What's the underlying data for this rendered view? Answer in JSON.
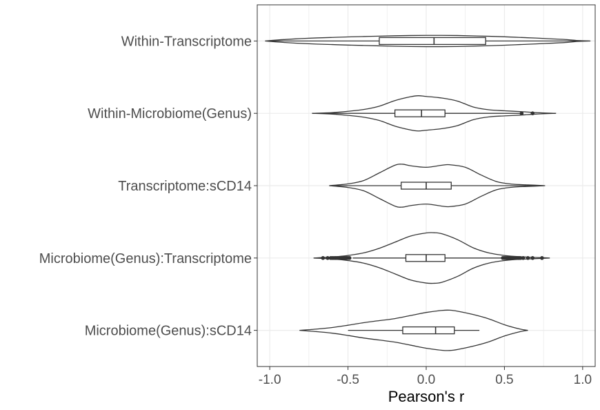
{
  "chart_data": {
    "type": "violin",
    "orientation": "horizontal",
    "title": "",
    "xlabel": "Pearson's r",
    "ylabel": "",
    "xlim": [
      -1.08,
      1.08
    ],
    "xticks": [
      -1.0,
      -0.5,
      0.0,
      0.5,
      1.0
    ],
    "xtick_labels": [
      "-1.0",
      "-0.5",
      "0.0",
      "0.5",
      "1.0"
    ],
    "grid": true,
    "legend": "none",
    "colors": {
      "stroke": "#333333",
      "grid": "#ebebeb",
      "fill": "#ffffff"
    },
    "series": [
      {
        "label": "Within-Transcriptome",
        "violin_min": -1.03,
        "violin_max": 1.05,
        "box": {
          "whisker_low": -1.01,
          "q1": -0.3,
          "median": 0.05,
          "q3": 0.38,
          "whisker_high": 1.04
        },
        "outliers": [],
        "density": [
          [
            -1.03,
            0
          ],
          [
            -0.95,
            0.04
          ],
          [
            -0.9,
            0.06
          ],
          [
            -0.8,
            0.095
          ],
          [
            -0.7,
            0.12
          ],
          [
            -0.6,
            0.14
          ],
          [
            -0.5,
            0.16
          ],
          [
            -0.4,
            0.175
          ],
          [
            -0.3,
            0.19
          ],
          [
            -0.2,
            0.205
          ],
          [
            -0.1,
            0.215
          ],
          [
            0.0,
            0.22
          ],
          [
            0.1,
            0.22
          ],
          [
            0.2,
            0.215
          ],
          [
            0.3,
            0.2
          ],
          [
            0.4,
            0.185
          ],
          [
            0.5,
            0.165
          ],
          [
            0.6,
            0.14
          ],
          [
            0.7,
            0.115
          ],
          [
            0.8,
            0.085
          ],
          [
            0.9,
            0.055
          ],
          [
            0.96,
            0.02
          ],
          [
            1.0,
            0.01
          ],
          [
            1.05,
            0
          ]
        ]
      },
      {
        "label": "Within-Microbiome(Genus)",
        "violin_min": -0.73,
        "violin_max": 0.83,
        "box": {
          "whisker_low": -0.72,
          "q1": -0.2,
          "median": -0.03,
          "q3": 0.12,
          "whisker_high": 0.6
        },
        "outliers": [
          0.61,
          0.68
        ],
        "density": [
          [
            -0.73,
            0
          ],
          [
            -0.6,
            0.03
          ],
          [
            -0.5,
            0.08
          ],
          [
            -0.4,
            0.15
          ],
          [
            -0.3,
            0.28
          ],
          [
            -0.2,
            0.5
          ],
          [
            -0.1,
            0.65
          ],
          [
            -0.05,
            0.69
          ],
          [
            0.0,
            0.66
          ],
          [
            0.1,
            0.6
          ],
          [
            0.2,
            0.48
          ],
          [
            0.3,
            0.25
          ],
          [
            0.4,
            0.14
          ],
          [
            0.5,
            0.1
          ],
          [
            0.6,
            0.07
          ],
          [
            0.7,
            0.03
          ],
          [
            0.83,
            0
          ]
        ]
      },
      {
        "label": "Transcriptome:sCD14",
        "violin_min": -0.62,
        "violin_max": 0.76,
        "box": {
          "whisker_low": -0.6,
          "q1": -0.16,
          "median": 0.0,
          "q3": 0.16,
          "whisker_high": 0.75
        },
        "outliers": [],
        "density": [
          [
            -0.62,
            0
          ],
          [
            -0.5,
            0.07
          ],
          [
            -0.4,
            0.2
          ],
          [
            -0.3,
            0.5
          ],
          [
            -0.2,
            0.8
          ],
          [
            -0.15,
            0.84
          ],
          [
            -0.1,
            0.78
          ],
          [
            0.0,
            0.72
          ],
          [
            0.1,
            0.8
          ],
          [
            0.15,
            0.82
          ],
          [
            0.25,
            0.72
          ],
          [
            0.35,
            0.42
          ],
          [
            0.45,
            0.16
          ],
          [
            0.55,
            0.06
          ],
          [
            0.65,
            0.03
          ],
          [
            0.76,
            0
          ]
        ]
      },
      {
        "label": "Microbiome(Genus):Transcriptome",
        "violin_min": -0.72,
        "violin_max": 0.79,
        "box": {
          "whisker_low": -0.47,
          "q1": -0.13,
          "median": 0.0,
          "q3": 0.12,
          "whisker_high": 0.48
        },
        "outliers": [
          -0.66,
          -0.63,
          -0.61,
          -0.6,
          -0.59,
          -0.58,
          -0.57,
          -0.56,
          -0.55,
          -0.54,
          -0.53,
          -0.52,
          -0.51,
          -0.5,
          -0.49,
          0.49,
          0.5,
          0.51,
          0.52,
          0.53,
          0.54,
          0.55,
          0.56,
          0.57,
          0.58,
          0.59,
          0.6,
          0.62,
          0.65,
          0.68,
          0.74
        ],
        "density": [
          [
            -0.72,
            0
          ],
          [
            -0.6,
            0.04
          ],
          [
            -0.5,
            0.1
          ],
          [
            -0.4,
            0.2
          ],
          [
            -0.3,
            0.38
          ],
          [
            -0.2,
            0.62
          ],
          [
            -0.1,
            0.86
          ],
          [
            0.0,
            0.98
          ],
          [
            0.05,
            0.99
          ],
          [
            0.1,
            0.95
          ],
          [
            0.2,
            0.72
          ],
          [
            0.3,
            0.4
          ],
          [
            0.4,
            0.2
          ],
          [
            0.5,
            0.1
          ],
          [
            0.6,
            0.05
          ],
          [
            0.79,
            0
          ]
        ]
      },
      {
        "label": "Microbiome(Genus):sCD14",
        "violin_min": -0.81,
        "violin_max": 0.65,
        "box": {
          "whisker_low": -0.5,
          "q1": -0.15,
          "median": 0.06,
          "q3": 0.18,
          "whisker_high": 0.34
        },
        "outliers": [],
        "density": [
          [
            -0.81,
            0
          ],
          [
            -0.7,
            0.05
          ],
          [
            -0.6,
            0.11
          ],
          [
            -0.5,
            0.2
          ],
          [
            -0.4,
            0.3
          ],
          [
            -0.3,
            0.38
          ],
          [
            -0.2,
            0.46
          ],
          [
            -0.1,
            0.58
          ],
          [
            0.0,
            0.7
          ],
          [
            0.1,
            0.78
          ],
          [
            0.15,
            0.79
          ],
          [
            0.2,
            0.75
          ],
          [
            0.3,
            0.62
          ],
          [
            0.4,
            0.45
          ],
          [
            0.5,
            0.22
          ],
          [
            0.6,
            0.05
          ],
          [
            0.65,
            0
          ]
        ]
      }
    ]
  }
}
